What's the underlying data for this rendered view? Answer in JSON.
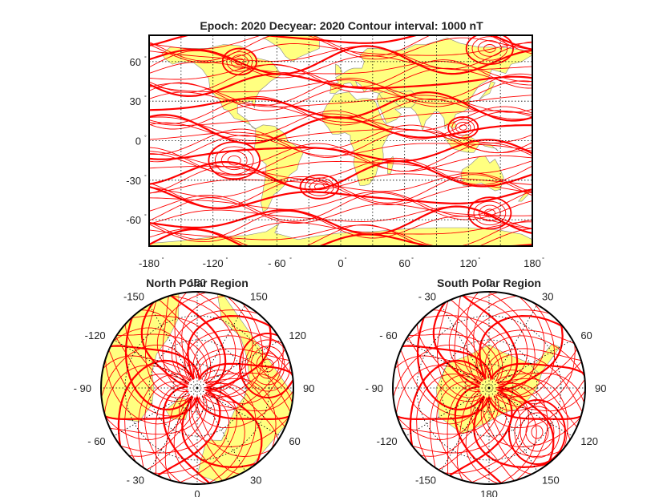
{
  "figure": {
    "title": "Epoch: 2020 Decyear: 2020 Contour interval: 1000 nT",
    "north_title": "North Polar Region",
    "south_title": "South Polar Region",
    "colors": {
      "land": "#ffff80",
      "contour": "#ff0000",
      "frame": "#000000",
      "grid": "#000000"
    }
  },
  "chart_data": [
    {
      "type": "contour",
      "panel": "world-map",
      "title": "Epoch: 2020 Decyear: 2020 Contour interval: 1000 nT",
      "contour_interval": 1000,
      "contour_units": "nT",
      "projection": "plate-carree",
      "xlim": [
        -180,
        180
      ],
      "ylim": [
        -80,
        80
      ],
      "grid": true,
      "x_ticks": [
        {
          "value": -180,
          "label": "-180"
        },
        {
          "value": -120,
          "label": "-120"
        },
        {
          "value": -60,
          "label": "- 60"
        },
        {
          "value": 0,
          "label": "0"
        },
        {
          "value": 60,
          "label": "60"
        },
        {
          "value": 120,
          "label": "120"
        },
        {
          "value": 180,
          "label": "180"
        }
      ],
      "y_ticks": [
        {
          "value": 60,
          "label": "60"
        },
        {
          "value": 30,
          "label": "30"
        },
        {
          "value": 0,
          "label": "0"
        },
        {
          "value": -30,
          "label": "-30"
        },
        {
          "value": -60,
          "label": "-60"
        }
      ]
    },
    {
      "type": "contour",
      "panel": "north-polar",
      "title": "North Polar Region",
      "projection": "polar-stereographic",
      "grid": true,
      "longitude_labels": [
        {
          "lon": 180,
          "label": "180"
        },
        {
          "lon": -150,
          "label": "-150"
        },
        {
          "lon": 150,
          "label": "150"
        },
        {
          "lon": -120,
          "label": "-120"
        },
        {
          "lon": 120,
          "label": "120"
        },
        {
          "lon": -90,
          "label": "- 90"
        },
        {
          "lon": 90,
          "label": "90"
        },
        {
          "lon": -60,
          "label": "- 60"
        },
        {
          "lon": 60,
          "label": "60"
        },
        {
          "lon": -30,
          "label": "- 30"
        },
        {
          "lon": 30,
          "label": "30"
        },
        {
          "lon": 0,
          "label": "0"
        }
      ]
    },
    {
      "type": "contour",
      "panel": "south-polar",
      "title": "South Polar Region",
      "projection": "polar-stereographic",
      "grid": true,
      "longitude_labels": [
        {
          "lon": 0,
          "label": "0"
        },
        {
          "lon": -30,
          "label": "- 30"
        },
        {
          "lon": 30,
          "label": "30"
        },
        {
          "lon": -60,
          "label": "- 60"
        },
        {
          "lon": 60,
          "label": "60"
        },
        {
          "lon": -90,
          "label": "- 90"
        },
        {
          "lon": 90,
          "label": "90"
        },
        {
          "lon": -120,
          "label": "-120"
        },
        {
          "lon": 120,
          "label": "120"
        },
        {
          "lon": -150,
          "label": "-150"
        },
        {
          "lon": 150,
          "label": "150"
        },
        {
          "lon": 180,
          "label": "180"
        }
      ]
    }
  ]
}
